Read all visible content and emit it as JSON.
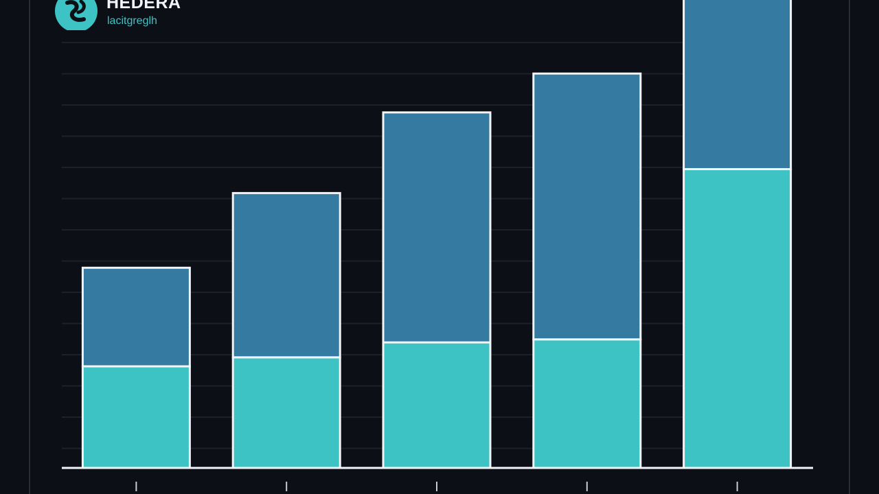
{
  "header": {
    "brand": "HEDERA",
    "tagline": "lacitgreglh",
    "logo_icon": "hedera-logo-icon"
  },
  "colors": {
    "background": "#0d0f16",
    "grid": "#1d2029",
    "upper_segment": "#357aa1",
    "lower_segment": "#3ec3c4",
    "outline": "#f2f4f7"
  },
  "chart_data": {
    "type": "bar",
    "stacked": true,
    "categories": [
      "",
      "",
      "",
      "",
      ""
    ],
    "series": [
      {
        "values": [
          34,
          37,
          42,
          43,
          100
        ]
      },
      {
        "values": [
          33,
          55,
          77,
          89,
          58
        ]
      }
    ],
    "ylim": [
      0,
      158
    ],
    "grid": true,
    "title": "",
    "xlabel": "",
    "ylabel": ""
  }
}
